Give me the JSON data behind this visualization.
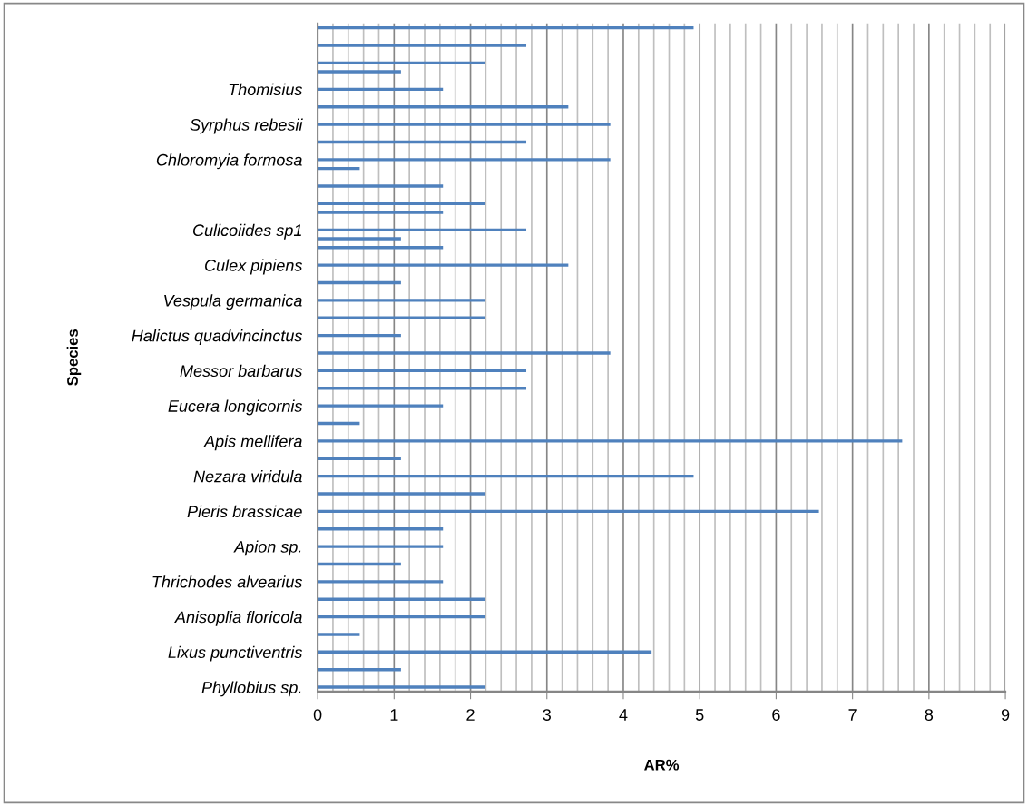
{
  "chart_data": {
    "type": "bar",
    "orientation": "horizontal",
    "xlabel": "AR%",
    "ylabel": "Species",
    "categories": [
      null,
      null,
      null,
      null,
      null,
      null,
      null,
      "Thomisius",
      null,
      null,
      null,
      "Syrphus rebesii",
      null,
      null,
      null,
      "Chloromyia formosa",
      null,
      null,
      null,
      null,
      null,
      null,
      null,
      "Culicoiides sp1",
      null,
      null,
      null,
      "Culex pipiens",
      null,
      null,
      null,
      "Vespula germanica",
      null,
      null,
      null,
      "Halictus quadvincinctus",
      null,
      null,
      null,
      "Messor barbarus",
      null,
      null,
      null,
      "Eucera longicornis",
      null,
      null,
      null,
      "Apis mellifera",
      null,
      null,
      null,
      "Nezara viridula",
      null,
      null,
      null,
      "Pieris brassicae",
      null,
      null,
      null,
      "Apion sp.",
      null,
      null,
      null,
      "Thrichodes alvearius",
      null,
      null,
      null,
      "Anisoplia floricola",
      null,
      null,
      null,
      "Lixus punctiventris",
      null,
      null,
      null,
      "Phyllobius sp."
    ],
    "values": [
      4.92,
      null,
      2.73,
      null,
      2.19,
      1.09,
      null,
      1.64,
      null,
      3.28,
      null,
      3.83,
      null,
      2.73,
      null,
      3.83,
      0.55,
      null,
      1.64,
      null,
      2.19,
      1.64,
      null,
      2.73,
      1.09,
      1.64,
      null,
      3.28,
      null,
      1.09,
      null,
      2.19,
      null,
      2.19,
      null,
      1.09,
      null,
      3.83,
      null,
      2.73,
      null,
      2.73,
      null,
      1.64,
      null,
      0.55,
      null,
      7.65,
      null,
      1.09,
      null,
      4.92,
      null,
      2.19,
      null,
      6.56,
      null,
      1.64,
      null,
      1.64,
      null,
      1.09,
      null,
      1.64,
      null,
      2.19,
      null,
      2.19,
      null,
      0.55,
      null,
      4.37,
      null,
      1.09,
      null,
      2.19
    ],
    "color": "#4f81bd",
    "xlim": [
      0,
      9
    ],
    "xticks": [
      0,
      {
        "value": 0.2,
        "label": null
      },
      {
        "value": 0.4,
        "label": null
      },
      {
        "value": 0.6,
        "label": null
      },
      {
        "value": 0.8,
        "label": null
      },
      1,
      {
        "value": 1.2,
        "label": null
      },
      {
        "value": 1.4,
        "label": null
      },
      {
        "value": 1.6,
        "label": null
      },
      {
        "value": 1.8,
        "label": null
      },
      2,
      {
        "value": 2.2,
        "label": null
      },
      {
        "value": 2.4,
        "label": null
      },
      {
        "value": 2.6,
        "label": null
      },
      {
        "value": 2.8,
        "label": null
      },
      3,
      {
        "value": 3.2,
        "label": null
      },
      {
        "value": 3.4,
        "label": null
      },
      {
        "value": 3.6,
        "label": null
      },
      {
        "value": 3.8,
        "label": null
      },
      4,
      {
        "value": 4.2,
        "label": null
      },
      {
        "value": 4.4,
        "label": null
      },
      {
        "value": 4.6,
        "label": null
      },
      {
        "value": 4.8,
        "label": null
      },
      5,
      {
        "value": 5.2,
        "label": null
      },
      {
        "value": 5.4,
        "label": null
      },
      {
        "value": 5.6,
        "label": null
      },
      {
        "value": 5.8,
        "label": null
      },
      6,
      {
        "value": 6.2,
        "label": null
      },
      {
        "value": 6.4,
        "label": null
      },
      {
        "value": 6.6,
        "label": null
      },
      {
        "value": 6.8,
        "label": null
      },
      7,
      {
        "value": 7.2,
        "label": null
      },
      {
        "value": 7.4,
        "label": null
      },
      {
        "value": 7.6,
        "label": null
      },
      {
        "value": 7.8,
        "label": null
      },
      8,
      {
        "value": 8.2,
        "label": null
      },
      {
        "value": 8.4,
        "label": null
      },
      {
        "value": 8.6,
        "label": null
      },
      {
        "value": 8.8,
        "label": null
      },
      9
    ],
    "grid": "x"
  }
}
